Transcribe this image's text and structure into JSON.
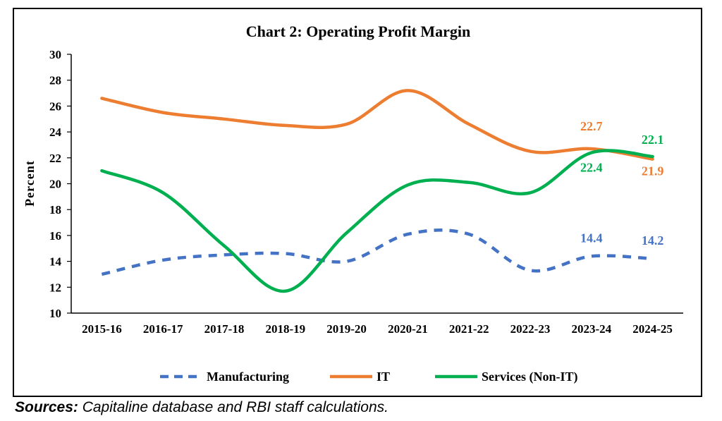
{
  "chart_data": {
    "type": "line",
    "title": "Chart 2: Operating Profit Margin",
    "xlabel": "",
    "ylabel": "Percent",
    "ylim": [
      10,
      30
    ],
    "ytick_step": 2,
    "grid": false,
    "legend_position": "bottom",
    "categories": [
      "2015-16",
      "2016-17",
      "2017-18",
      "2018-19",
      "2019-20",
      "2020-21",
      "2021-22",
      "2022-23",
      "2023-24",
      "2024-25"
    ],
    "series": [
      {
        "name": "Manufacturing",
        "color": "#4472C4",
        "style": "dashed",
        "values": [
          13.0,
          14.1,
          14.5,
          14.6,
          14.0,
          16.1,
          16.1,
          13.3,
          14.4,
          14.2
        ],
        "labels": [
          {
            "index": 8,
            "text": "14.4",
            "dx": 0,
            "dy": -20
          },
          {
            "index": 9,
            "text": "14.2",
            "dx": 0,
            "dy": -20
          }
        ]
      },
      {
        "name": "IT",
        "color": "#ED7D31",
        "style": "solid",
        "values": [
          26.6,
          25.5,
          25.0,
          24.5,
          24.6,
          27.2,
          24.6,
          22.5,
          22.7,
          21.9
        ],
        "labels": [
          {
            "index": 8,
            "text": "22.7",
            "dx": 0,
            "dy": -26
          },
          {
            "index": 9,
            "text": "21.9",
            "dx": 0,
            "dy": 23
          }
        ]
      },
      {
        "name": "Services (Non-IT)",
        "color": "#00B050",
        "style": "solid",
        "values": [
          21.0,
          19.3,
          15.2,
          11.7,
          16.2,
          19.9,
          20.1,
          19.3,
          22.4,
          22.1
        ],
        "labels": [
          {
            "index": 8,
            "text": "22.4",
            "dx": 0,
            "dy": 27
          },
          {
            "index": 9,
            "text": "22.1",
            "dx": 0,
            "dy": -18
          }
        ]
      }
    ]
  },
  "sources": {
    "lead": "Sources:",
    "text": " Capitaline database and RBI staff calculations."
  }
}
